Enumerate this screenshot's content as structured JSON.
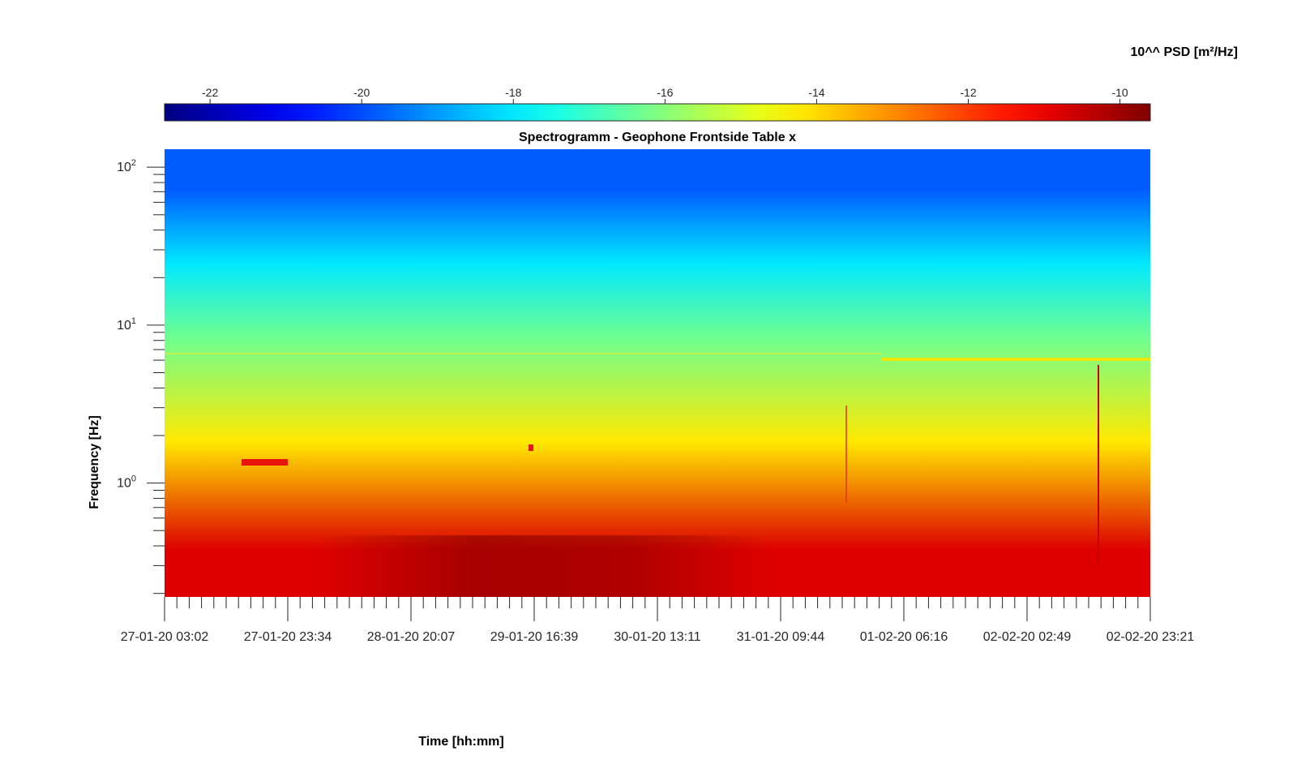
{
  "chart_data": {
    "type": "heatmap",
    "title": "Spectrogramm - Geophone Frontside Table x",
    "xlabel": "Time [hh:mm]",
    "ylabel": "Frequency [Hz]",
    "y_scale": "log",
    "ylim": [
      0.19,
      130
    ],
    "y_ticks": [
      {
        "value": 1,
        "base": "10",
        "exp": "0"
      },
      {
        "value": 10,
        "base": "10",
        "exp": "1"
      },
      {
        "value": 100,
        "base": "10",
        "exp": "2"
      }
    ],
    "x_ticks": [
      "27-01-20 03:02",
      "27-01-20 23:34",
      "28-01-20 20:07",
      "29-01-20 16:39",
      "30-01-20 13:11",
      "31-01-20 09:44",
      "01-02-20 06:16",
      "02-02-20 02:49",
      "02-02-20 23:21"
    ],
    "colorbar": {
      "label": "10^^ PSD [m²/Hz]",
      "range": [
        -22.6,
        -9.6
      ],
      "ticks": [
        -22,
        -20,
        -18,
        -16,
        -14,
        -12,
        -10
      ],
      "colormap": "jet"
    },
    "frequency_bands": [
      {
        "f_low": 0.19,
        "f_high": 0.75,
        "log_psd": -10.8
      },
      {
        "f_low": 0.75,
        "f_high": 4.5,
        "log_psd": -14.2
      },
      {
        "f_low": 4.5,
        "f_high": 15,
        "log_psd": -16.3
      },
      {
        "f_low": 15,
        "f_high": 40,
        "log_psd": -18.0
      },
      {
        "f_low": 40,
        "f_high": 130,
        "log_psd": -19.8
      }
    ]
  }
}
